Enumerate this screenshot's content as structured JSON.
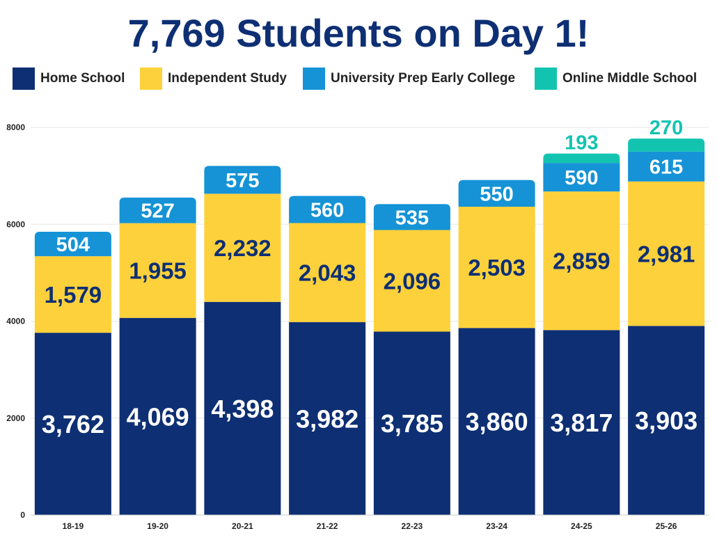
{
  "title": "7,769 Students on Day 1!",
  "legend": [
    {
      "label": "Home School",
      "color": "#0e2f73"
    },
    {
      "label": "Independent Study",
      "color": "#fdd13b"
    },
    {
      "label": "University Prep Early College",
      "color": "#1593d6"
    },
    {
      "label": "Online Middle School",
      "color": "#12c4b0"
    }
  ],
  "chart_data": {
    "type": "bar",
    "stacked": true,
    "title": "7,769 Students on Day 1!",
    "categories": [
      "18-19",
      "19-20",
      "20-21",
      "21-22",
      "22-23",
      "23-24",
      "24-25",
      "25-26"
    ],
    "series": [
      {
        "name": "Home School",
        "color": "#0e2f73",
        "label_color": "#ffffff",
        "values": [
          3762,
          4069,
          4398,
          3982,
          3785,
          3860,
          3817,
          3903
        ],
        "labels": [
          "3,762",
          "4,069",
          "4,398",
          "3,982",
          "3,785",
          "3,860",
          "3,817",
          "3,903"
        ]
      },
      {
        "name": "Independent Study",
        "color": "#fdd13b",
        "label_color": "#0e2f73",
        "values": [
          1579,
          1955,
          2232,
          2043,
          2096,
          2503,
          2859,
          2981
        ],
        "labels": [
          "1,579",
          "1,955",
          "2,232",
          "2,043",
          "2,096",
          "2,503",
          "2,859",
          "2,981"
        ]
      },
      {
        "name": "University Prep Early College",
        "color": "#1593d6",
        "label_color": "#ffffff",
        "values": [
          504,
          527,
          575,
          560,
          535,
          550,
          590,
          615
        ],
        "labels": [
          "504",
          "527",
          "575",
          "560",
          "535",
          "550",
          "590",
          "615"
        ]
      },
      {
        "name": "Online Middle School",
        "color": "#12c4b0",
        "label_color": "#12c4b0",
        "values": [
          0,
          0,
          0,
          0,
          0,
          0,
          193,
          270
        ],
        "labels": [
          "",
          "",
          "",
          "",
          "",
          "",
          "193",
          "270"
        ]
      }
    ],
    "yticks": [
      0,
      2000,
      4000,
      6000,
      8000
    ],
    "ylim": [
      0,
      8000
    ],
    "grid": true,
    "legend": "top"
  }
}
